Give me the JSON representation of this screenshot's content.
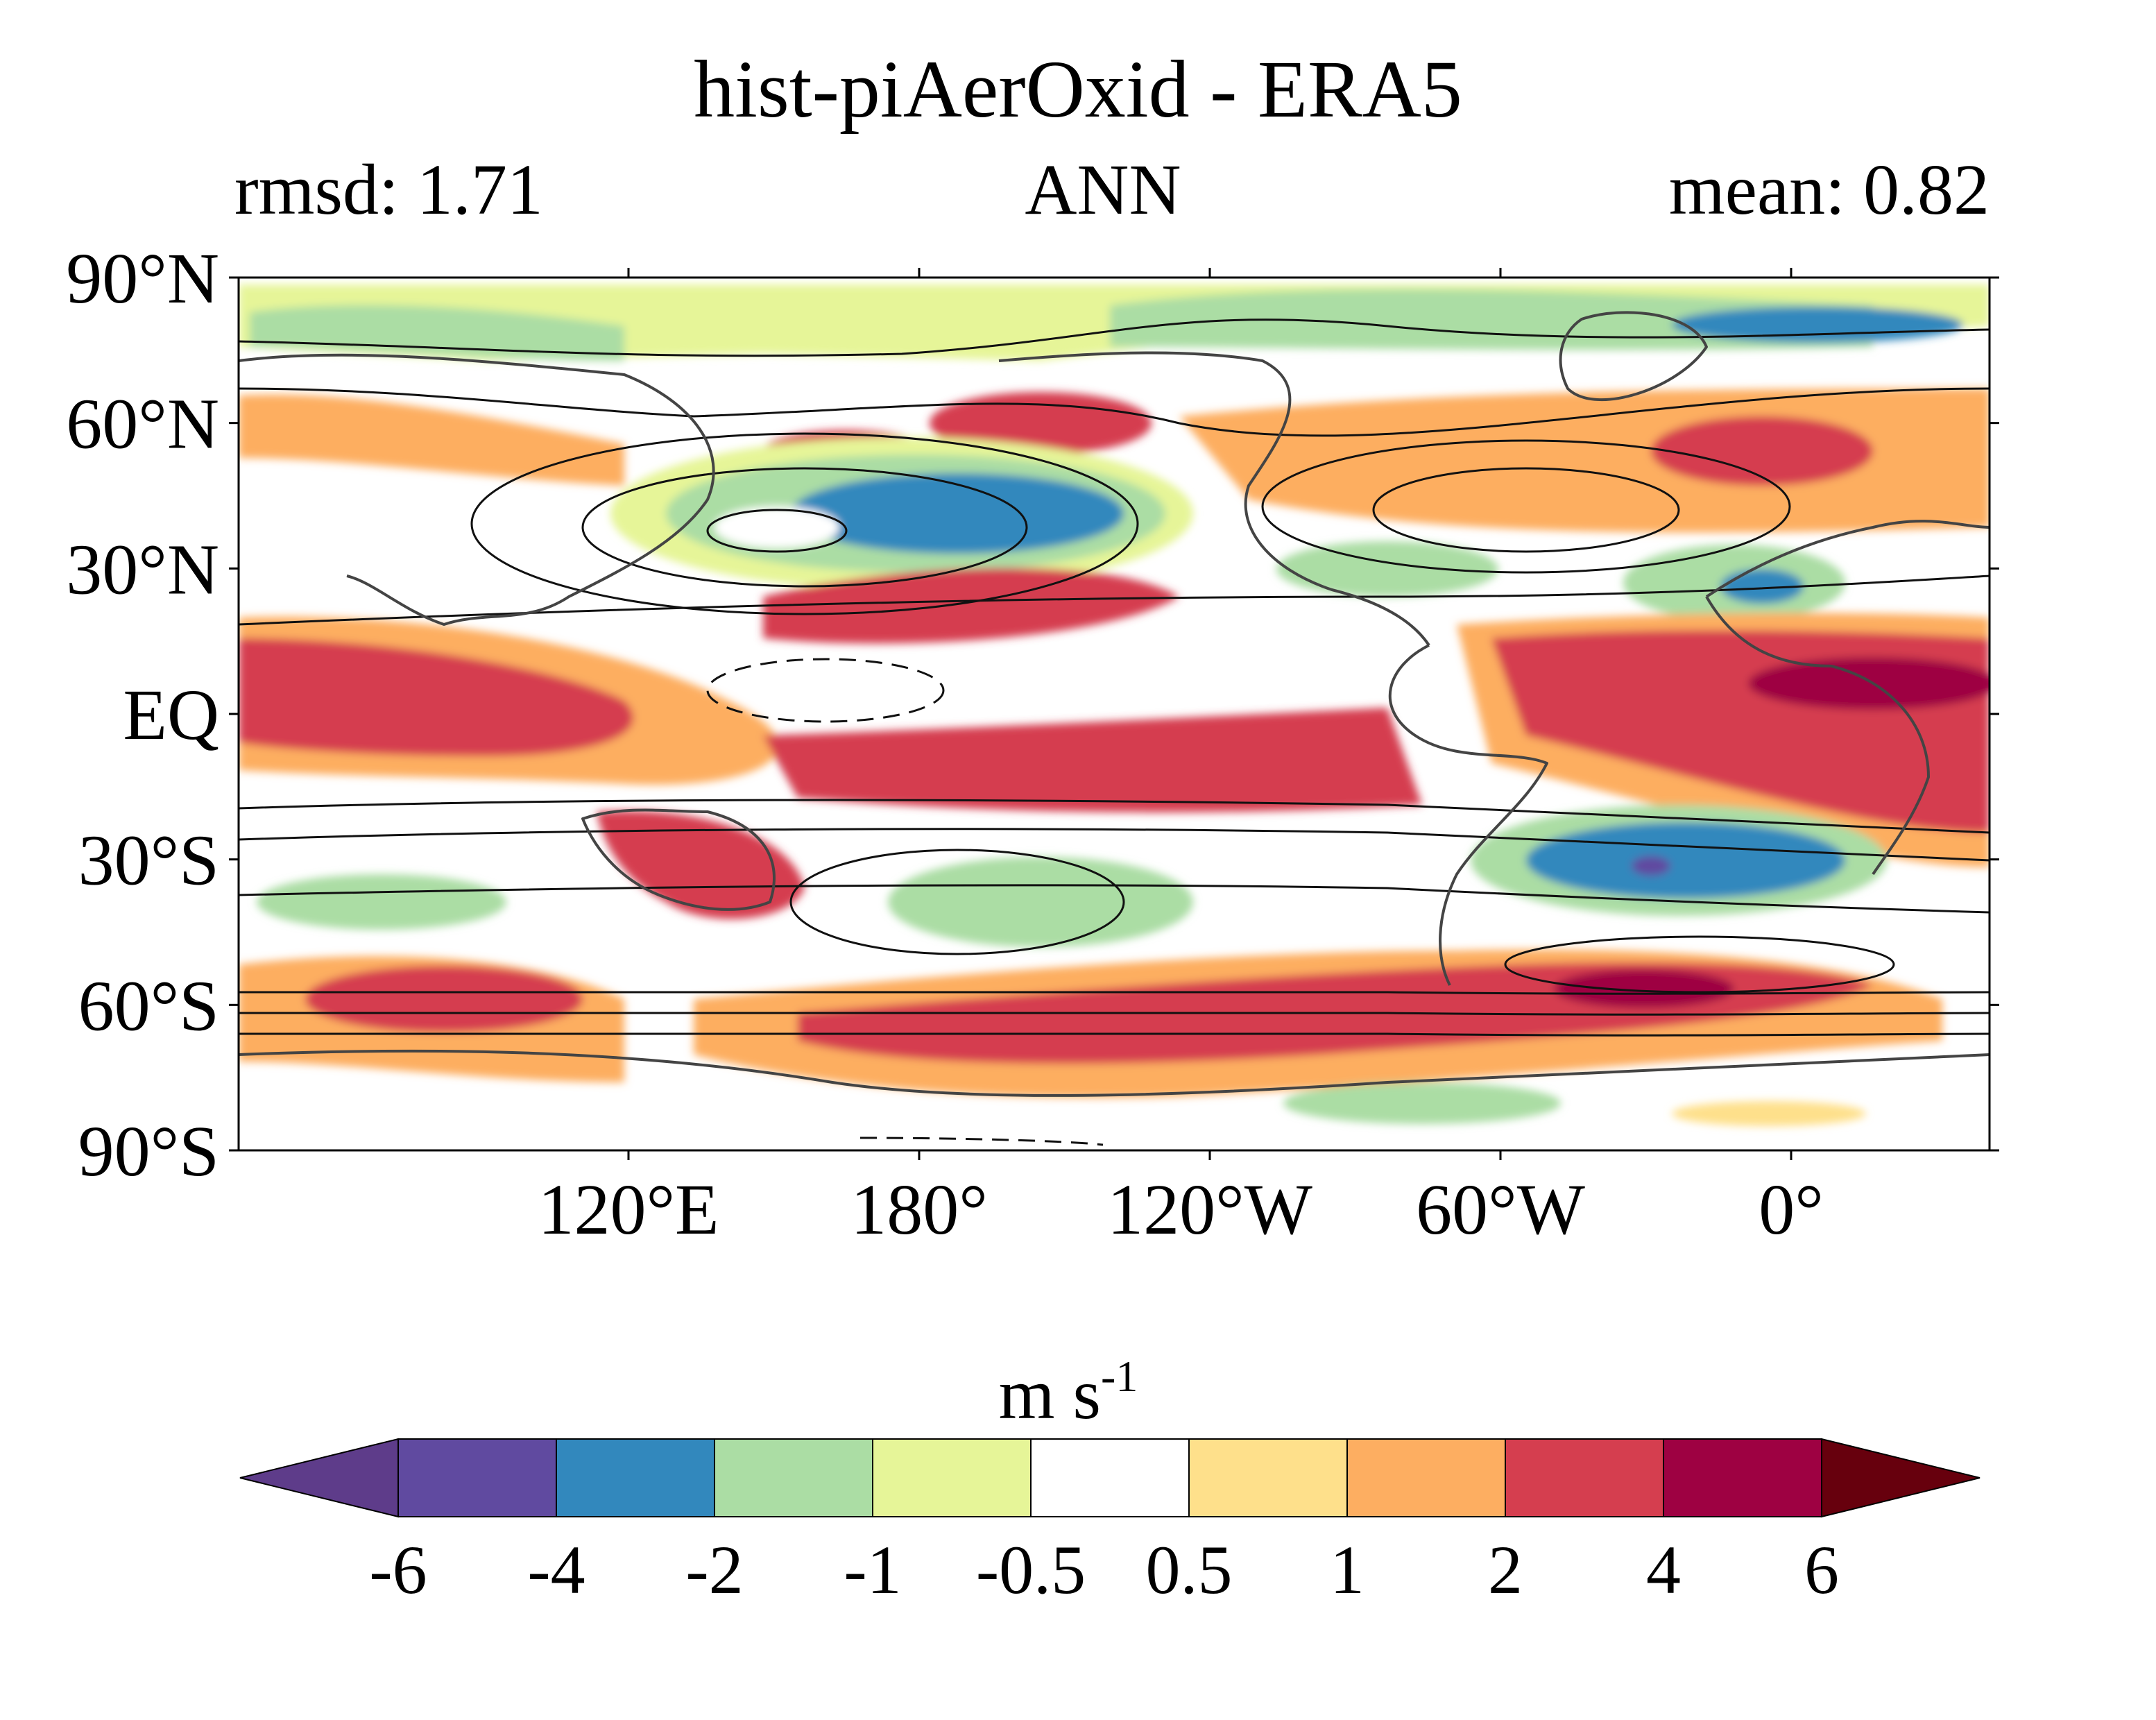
{
  "title": "hist-piAerOxid - ERA5",
  "stats": {
    "left": "rmsd: 1.71",
    "center": "ANN",
    "right": "mean: 0.82"
  },
  "lat_labels": [
    "90°N",
    "60°N",
    "30°N",
    "EQ",
    "30°S",
    "60°S",
    "90°S"
  ],
  "lon_labels": [
    "120°E",
    "180°",
    "120°W",
    "60°W",
    "0°"
  ],
  "colorbar": {
    "unit_base": "m s",
    "unit_exp": "-1",
    "ticks": [
      "-6",
      "-4",
      "-2",
      "-1",
      "-0.5",
      "0.5",
      "1",
      "2",
      "4",
      "6"
    ],
    "colors": {
      "under": "#5e3c8a",
      "bins": [
        "#604aa0",
        "#3288bd",
        "#abdda4",
        "#e6f598",
        "#ffffff",
        "#fee08b",
        "#fdae61",
        "#d53e4f",
        "#9e0142"
      ],
      "over": "#67000d"
    }
  },
  "map_colors": {
    "coast": "#444444",
    "contour": "#111111"
  }
}
